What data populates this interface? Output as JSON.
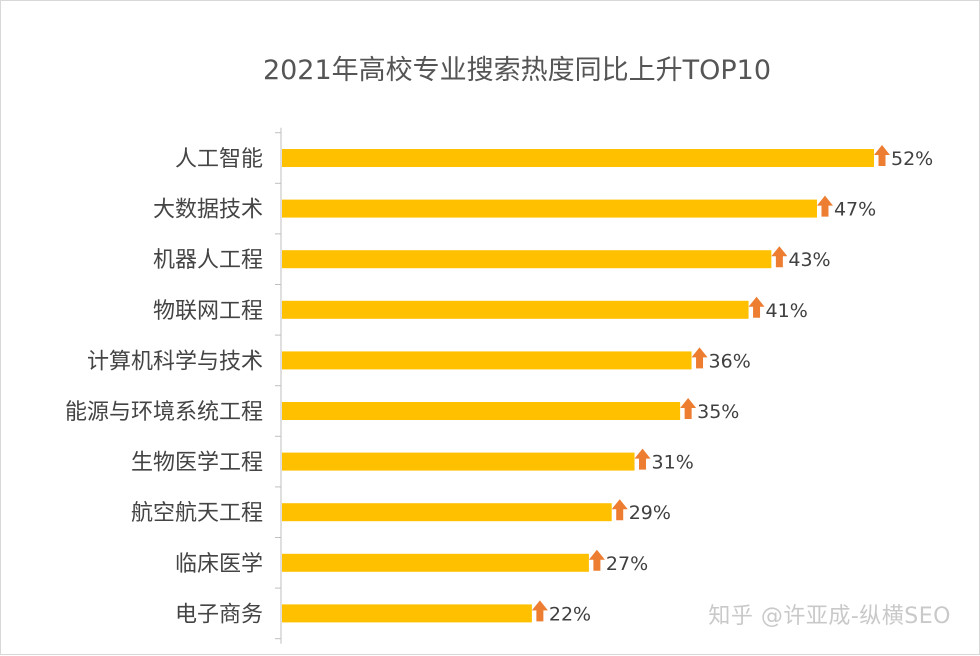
{
  "chart_data": {
    "type": "bar",
    "orientation": "horizontal",
    "title": "2021年高校专业搜索热度同比上升TOP10",
    "categories": [
      "人工智能",
      "大数据技术",
      "机器人工程",
      "物联网工程",
      "计算机科学与技术",
      "能源与环境系统工程",
      "生物医学工程",
      "航空航天工程",
      "临床医学",
      "电子商务"
    ],
    "values": [
      52,
      47,
      43,
      41,
      36,
      35,
      31,
      29,
      27,
      22
    ],
    "value_labels": [
      "52%",
      "47%",
      "43%",
      "41%",
      "36%",
      "35%",
      "31%",
      "29%",
      "27%",
      "22%"
    ],
    "xlim": [
      0,
      52
    ],
    "grid": false,
    "legend": "none",
    "colors": {
      "bar": "#FFC000",
      "arrow": "#ED7D31",
      "axis": "#BFBFBF"
    },
    "markers": {
      "icon": "up-arrow-icon"
    }
  },
  "watermark": "知乎 @许亚成-纵横SEO"
}
